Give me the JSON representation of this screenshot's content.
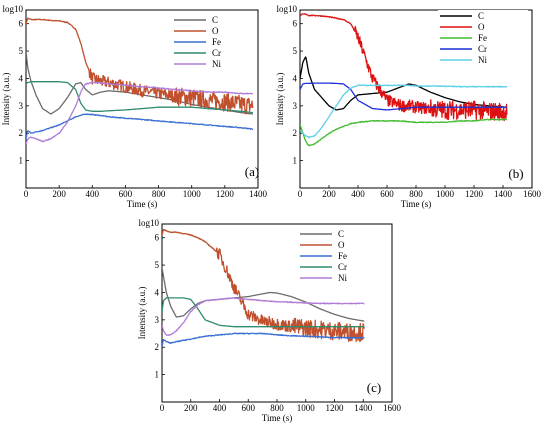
{
  "chart_data": [
    {
      "type": "line",
      "panel_label": "(a)",
      "xlabel": "Time (s)",
      "ylabel": "Intensity (a.u.)",
      "y_axis_top_label": "log10",
      "xlim": [
        0,
        1400
      ],
      "ylim": [
        0,
        6.5
      ],
      "xticks": [
        "0",
        "200",
        "400",
        "600",
        "800",
        "1000",
        "1200",
        "1400"
      ],
      "yticks": [
        "1",
        "2",
        "3",
        "4",
        "5",
        "6"
      ],
      "legend_placement": "top-right",
      "series": [
        {
          "name": "C",
          "color": "#6b6b6b",
          "x": [
            0,
            10,
            30,
            60,
            100,
            150,
            200,
            250,
            300,
            330,
            360,
            400,
            450,
            500,
            600,
            700,
            800,
            900,
            1000,
            1100,
            1200,
            1300,
            1370
          ],
          "y": [
            5.0,
            4.4,
            3.9,
            3.4,
            2.9,
            2.7,
            2.9,
            3.3,
            3.8,
            3.85,
            3.6,
            3.4,
            3.5,
            3.55,
            3.5,
            3.4,
            3.3,
            3.2,
            3.05,
            2.95,
            2.85,
            2.75,
            2.7
          ]
        },
        {
          "name": "O",
          "color": "#c1502e",
          "x": [
            0,
            10,
            30,
            60,
            100,
            150,
            200,
            250,
            300,
            330,
            360,
            400,
            450,
            500,
            600,
            700,
            800,
            900,
            1000,
            1100,
            1200,
            1300,
            1370
          ],
          "y": [
            6.0,
            6.2,
            6.15,
            6.15,
            6.15,
            6.12,
            6.1,
            6.05,
            5.8,
            5.3,
            4.6,
            4.0,
            3.9,
            3.85,
            3.7,
            3.55,
            3.45,
            3.35,
            3.3,
            3.2,
            3.15,
            3.05,
            3.0
          ]
        },
        {
          "name": "Fe",
          "color": "#3b6fd4",
          "x": [
            0,
            10,
            30,
            60,
            100,
            150,
            200,
            250,
            300,
            330,
            360,
            400,
            450,
            500,
            600,
            700,
            800,
            900,
            1000,
            1100,
            1200,
            1300,
            1370
          ],
          "y": [
            1.8,
            2.1,
            2.0,
            2.05,
            2.1,
            2.2,
            2.3,
            2.45,
            2.6,
            2.65,
            2.7,
            2.68,
            2.65,
            2.6,
            2.55,
            2.5,
            2.45,
            2.4,
            2.35,
            2.3,
            2.25,
            2.2,
            2.15
          ]
        },
        {
          "name": "Cr",
          "color": "#2e8b6e",
          "x": [
            0,
            10,
            30,
            60,
            100,
            150,
            200,
            250,
            300,
            330,
            360,
            400,
            450,
            500,
            600,
            700,
            800,
            900,
            1000,
            1100,
            1200,
            1300,
            1370
          ],
          "y": [
            3.8,
            3.85,
            3.88,
            3.88,
            3.88,
            3.88,
            3.88,
            3.85,
            3.6,
            3.1,
            2.85,
            2.8,
            2.8,
            2.82,
            2.85,
            2.9,
            2.95,
            2.95,
            2.95,
            2.9,
            2.85,
            2.8,
            2.75
          ]
        },
        {
          "name": "Ni",
          "color": "#b07cd8",
          "x": [
            0,
            10,
            30,
            60,
            100,
            150,
            200,
            250,
            300,
            330,
            360,
            400,
            450,
            500,
            600,
            700,
            800,
            900,
            1000,
            1100,
            1200,
            1300,
            1370
          ],
          "y": [
            1.6,
            1.8,
            1.85,
            1.8,
            1.7,
            1.8,
            2.0,
            2.4,
            3.0,
            3.5,
            3.8,
            3.85,
            3.85,
            3.8,
            3.75,
            3.7,
            3.65,
            3.6,
            3.55,
            3.5,
            3.5,
            3.45,
            3.45
          ]
        }
      ]
    },
    {
      "type": "line",
      "panel_label": "(b)",
      "xlabel": "Time (s)",
      "ylabel": "Intensity (a.u.)",
      "y_axis_top_label": "log10",
      "xlim": [
        0,
        1600
      ],
      "ylim": [
        0,
        6.5
      ],
      "xticks": [
        "0",
        "200",
        "400",
        "600",
        "800",
        "1000",
        "1200",
        "1400",
        "1600"
      ],
      "yticks": [
        "1",
        "2",
        "3",
        "4",
        "5",
        "6"
      ],
      "legend_placement": "top-right",
      "series": [
        {
          "name": "C",
          "color": "#000000",
          "x": [
            0,
            20,
            40,
            60,
            100,
            150,
            200,
            250,
            300,
            350,
            400,
            500,
            600,
            700,
            750,
            800,
            900,
            1000,
            1100,
            1200,
            1300,
            1430
          ],
          "y": [
            4.0,
            4.6,
            4.8,
            4.2,
            3.6,
            3.3,
            3.0,
            2.85,
            2.9,
            3.2,
            3.4,
            3.45,
            3.5,
            3.7,
            3.8,
            3.75,
            3.5,
            3.3,
            3.15,
            3.05,
            3.0,
            2.95
          ]
        },
        {
          "name": "O",
          "color": "#dd1111",
          "x": [
            0,
            20,
            40,
            60,
            100,
            150,
            200,
            250,
            300,
            350,
            400,
            500,
            600,
            700,
            750,
            800,
            900,
            1000,
            1100,
            1200,
            1300,
            1430
          ],
          "y": [
            6.3,
            6.35,
            6.35,
            6.3,
            6.3,
            6.28,
            6.25,
            6.2,
            6.15,
            6.0,
            5.5,
            4.0,
            3.2,
            3.0,
            3.0,
            2.95,
            2.9,
            2.85,
            2.85,
            2.85,
            2.8,
            2.8
          ]
        },
        {
          "name": "Fe",
          "color": "#44bb33",
          "x": [
            0,
            20,
            40,
            60,
            100,
            150,
            200,
            250,
            300,
            350,
            400,
            500,
            600,
            700,
            750,
            800,
            900,
            1000,
            1100,
            1200,
            1300,
            1430
          ],
          "y": [
            2.3,
            2.0,
            1.7,
            1.55,
            1.6,
            1.8,
            2.0,
            2.15,
            2.25,
            2.35,
            2.4,
            2.45,
            2.45,
            2.45,
            2.42,
            2.4,
            2.4,
            2.4,
            2.45,
            2.45,
            2.5,
            2.5
          ]
        },
        {
          "name": "Cr",
          "color": "#1c2fd8",
          "x": [
            0,
            20,
            40,
            60,
            100,
            150,
            200,
            250,
            300,
            350,
            400,
            500,
            600,
            700,
            750,
            800,
            900,
            1000,
            1100,
            1200,
            1300,
            1430
          ],
          "y": [
            3.6,
            3.8,
            3.82,
            3.82,
            3.83,
            3.83,
            3.83,
            3.82,
            3.8,
            3.6,
            3.2,
            2.9,
            2.85,
            2.9,
            2.92,
            2.95,
            2.95,
            2.95,
            2.95,
            2.95,
            2.95,
            2.95
          ]
        },
        {
          "name": "Ni",
          "color": "#5ed1e8",
          "x": [
            0,
            20,
            40,
            60,
            100,
            150,
            200,
            250,
            300,
            350,
            400,
            500,
            600,
            700,
            750,
            800,
            900,
            1000,
            1100,
            1200,
            1300,
            1430
          ],
          "y": [
            2.1,
            2.0,
            1.9,
            1.85,
            1.9,
            2.2,
            2.6,
            3.0,
            3.4,
            3.65,
            3.75,
            3.75,
            3.75,
            3.75,
            3.75,
            3.72,
            3.72,
            3.72,
            3.7,
            3.7,
            3.7,
            3.7
          ]
        }
      ]
    },
    {
      "type": "line",
      "panel_label": "(c)",
      "xlabel": "Time (s)",
      "ylabel": "Intensity (a.u.)",
      "y_axis_top_label": "log10",
      "xlim": [
        0,
        1600
      ],
      "ylim": [
        0,
        6.5
      ],
      "xticks": [
        "0",
        "200",
        "400",
        "600",
        "800",
        "1000",
        "1200",
        "1400",
        "1600"
      ],
      "yticks": [
        "1",
        "2",
        "3",
        "4",
        "5",
        "6"
      ],
      "legend_placement": "top-right",
      "series": [
        {
          "name": "C",
          "color": "#6b6b6b",
          "x": [
            0,
            10,
            30,
            60,
            100,
            150,
            200,
            250,
            300,
            400,
            500,
            600,
            700,
            750,
            800,
            900,
            1000,
            1100,
            1200,
            1300,
            1410
          ],
          "y": [
            4.9,
            4.6,
            4.0,
            3.5,
            3.1,
            3.15,
            3.4,
            3.6,
            3.7,
            3.75,
            3.8,
            3.85,
            3.95,
            4.0,
            3.98,
            3.85,
            3.65,
            3.4,
            3.2,
            3.05,
            2.95
          ]
        },
        {
          "name": "O",
          "color": "#c1502e",
          "x": [
            0,
            10,
            30,
            60,
            100,
            150,
            200,
            250,
            300,
            400,
            500,
            600,
            700,
            750,
            800,
            900,
            1000,
            1100,
            1200,
            1300,
            1410
          ],
          "y": [
            6.1,
            6.3,
            6.25,
            6.2,
            6.2,
            6.15,
            6.1,
            6.0,
            5.85,
            5.4,
            4.2,
            3.2,
            2.95,
            2.9,
            2.85,
            2.75,
            2.7,
            2.65,
            2.6,
            2.55,
            2.55
          ]
        },
        {
          "name": "Fe",
          "color": "#3b6fd4",
          "x": [
            0,
            10,
            30,
            60,
            100,
            150,
            200,
            250,
            300,
            400,
            500,
            600,
            700,
            750,
            800,
            900,
            1000,
            1100,
            1200,
            1300,
            1410
          ],
          "y": [
            2.0,
            2.3,
            2.2,
            2.15,
            2.2,
            2.25,
            2.3,
            2.35,
            2.4,
            2.45,
            2.5,
            2.5,
            2.5,
            2.48,
            2.45,
            2.42,
            2.4,
            2.38,
            2.35,
            2.35,
            2.35
          ]
        },
        {
          "name": "Cr",
          "color": "#2e8b6e",
          "x": [
            0,
            10,
            30,
            60,
            100,
            150,
            200,
            250,
            300,
            400,
            500,
            600,
            700,
            750,
            800,
            900,
            1000,
            1100,
            1200,
            1300,
            1410
          ],
          "y": [
            3.3,
            3.7,
            3.8,
            3.8,
            3.8,
            3.8,
            3.75,
            3.4,
            3.0,
            2.8,
            2.75,
            2.75,
            2.75,
            2.75,
            2.75,
            2.75,
            2.75,
            2.75,
            2.75,
            2.75,
            2.75
          ]
        },
        {
          "name": "Ni",
          "color": "#b07cd8",
          "x": [
            0,
            10,
            30,
            60,
            100,
            150,
            200,
            250,
            300,
            400,
            500,
            600,
            700,
            750,
            800,
            900,
            1000,
            1100,
            1200,
            1300,
            1410
          ],
          "y": [
            2.8,
            2.6,
            2.45,
            2.45,
            2.6,
            2.9,
            3.3,
            3.55,
            3.7,
            3.75,
            3.8,
            3.75,
            3.7,
            3.68,
            3.66,
            3.64,
            3.62,
            3.6,
            3.6,
            3.6,
            3.6
          ]
        }
      ]
    }
  ]
}
